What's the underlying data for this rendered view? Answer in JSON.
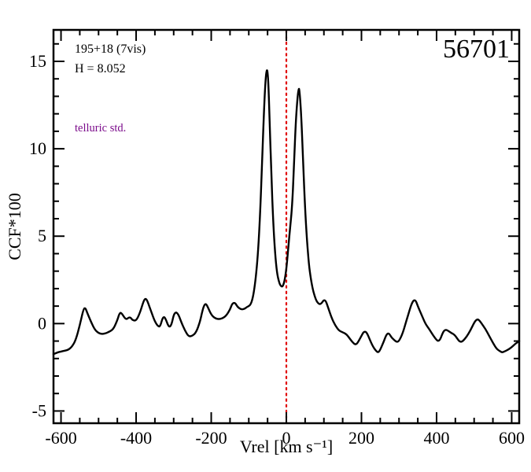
{
  "chart_data": {
    "type": "line",
    "title": "",
    "xlabel": "Vrel [km s⁻¹]",
    "ylabel": "CCF*100",
    "xlim": [
      -620,
      620
    ],
    "ylim": [
      -5.7,
      16.8
    ],
    "xticks": [
      -600,
      -400,
      -200,
      0,
      200,
      400,
      600
    ],
    "yticks": [
      -5,
      0,
      5,
      10,
      15
    ],
    "x_minor_step": 50,
    "y_minor_step": 1,
    "grid": false,
    "legend": "none",
    "frame_color": "#000000",
    "line_color": "#000000",
    "reference_line": {
      "x": 0,
      "color": "#e00000",
      "style": "dotted"
    },
    "series": [
      {
        "name": "CCF",
        "x": [
          -620,
          -610,
          -600,
          -590,
          -580,
          -570,
          -560,
          -550,
          -540,
          -535,
          -530,
          -520,
          -510,
          -500,
          -490,
          -480,
          -470,
          -460,
          -450,
          -445,
          -440,
          -430,
          -425,
          -420,
          -415,
          -410,
          -400,
          -390,
          -380,
          -375,
          -370,
          -360,
          -350,
          -340,
          -335,
          -330,
          -325,
          -320,
          -315,
          -310,
          -305,
          -300,
          -295,
          -290,
          -285,
          -280,
          -270,
          -260,
          -250,
          -240,
          -230,
          -225,
          -220,
          -215,
          -210,
          -200,
          -190,
          -180,
          -170,
          -160,
          -150,
          -145,
          -140,
          -135,
          -130,
          -120,
          -110,
          -105,
          -100,
          -95,
          -90,
          -85,
          -80,
          -75,
          -70,
          -65,
          -60,
          -55,
          -52,
          -50,
          -48,
          -45,
          -40,
          -35,
          -30,
          -25,
          -20,
          -15,
          -10,
          -5,
          0,
          5,
          10,
          15,
          20,
          25,
          30,
          33,
          35,
          40,
          45,
          50,
          55,
          60,
          65,
          70,
          75,
          80,
          85,
          90,
          95,
          100,
          105,
          110,
          120,
          130,
          140,
          150,
          160,
          170,
          180,
          185,
          190,
          200,
          205,
          210,
          215,
          220,
          230,
          240,
          245,
          250,
          260,
          265,
          270,
          275,
          280,
          290,
          295,
          300,
          310,
          320,
          330,
          335,
          340,
          345,
          350,
          360,
          370,
          380,
          390,
          400,
          405,
          410,
          415,
          420,
          425,
          430,
          440,
          445,
          450,
          455,
          460,
          465,
          470,
          480,
          490,
          500,
          505,
          510,
          515,
          520,
          530,
          540,
          550,
          560,
          570,
          575,
          580,
          590,
          600,
          610,
          620
        ],
        "y": [
          -1.75,
          -1.65,
          -1.6,
          -1.55,
          -1.5,
          -1.3,
          -0.9,
          -0.1,
          0.85,
          0.9,
          0.6,
          0.1,
          -0.35,
          -0.55,
          -0.6,
          -0.55,
          -0.45,
          -0.3,
          0.2,
          0.55,
          0.65,
          0.3,
          0.25,
          0.35,
          0.35,
          0.2,
          0.15,
          0.6,
          1.3,
          1.45,
          1.3,
          0.7,
          0.1,
          -0.2,
          -0.1,
          0.3,
          0.4,
          0.2,
          -0.1,
          -0.2,
          0.0,
          0.5,
          0.65,
          0.6,
          0.4,
          0.1,
          -0.4,
          -0.75,
          -0.7,
          -0.5,
          0.1,
          0.6,
          1.0,
          1.15,
          1.0,
          0.5,
          0.3,
          0.25,
          0.3,
          0.45,
          0.8,
          1.1,
          1.2,
          1.15,
          0.95,
          0.8,
          0.85,
          0.95,
          1.0,
          1.1,
          1.4,
          2.0,
          2.9,
          4.2,
          6.2,
          9.0,
          12.0,
          14.1,
          14.55,
          14.4,
          13.8,
          12.0,
          8.5,
          5.8,
          4.0,
          2.9,
          2.4,
          2.15,
          2.1,
          2.4,
          3.1,
          4.3,
          5.5,
          6.6,
          8.8,
          11.5,
          13.0,
          13.45,
          13.4,
          11.8,
          9.0,
          6.5,
          4.7,
          3.4,
          2.6,
          2.0,
          1.6,
          1.3,
          1.15,
          1.1,
          1.2,
          1.35,
          1.3,
          1.0,
          0.35,
          -0.1,
          -0.4,
          -0.5,
          -0.6,
          -0.9,
          -1.15,
          -1.2,
          -1.1,
          -0.7,
          -0.5,
          -0.45,
          -0.55,
          -0.8,
          -1.3,
          -1.6,
          -1.65,
          -1.5,
          -1.0,
          -0.7,
          -0.55,
          -0.6,
          -0.8,
          -1.0,
          -1.05,
          -1.0,
          -0.55,
          0.2,
          0.9,
          1.2,
          1.35,
          1.3,
          1.0,
          0.5,
          0.0,
          -0.3,
          -0.65,
          -0.95,
          -1.0,
          -0.9,
          -0.6,
          -0.4,
          -0.35,
          -0.4,
          -0.55,
          -0.6,
          -0.7,
          -0.85,
          -1.0,
          -1.05,
          -1.0,
          -0.75,
          -0.4,
          0.05,
          0.2,
          0.25,
          0.15,
          0.0,
          -0.3,
          -0.7,
          -1.1,
          -1.45,
          -1.6,
          -1.65,
          -1.6,
          -1.5,
          -1.35,
          -1.15,
          -1.0
        ]
      }
    ]
  },
  "annotations": {
    "field_label": "195+18 (7vis)",
    "hmag_label": "H = 8.052",
    "telluric_label": "telluric std.",
    "telluric_color": "#7b0b8b",
    "mjd_label": "56701"
  },
  "axes": {
    "xlabel": "Vrel [km s⁻¹]",
    "ylabel": "CCF*100"
  }
}
